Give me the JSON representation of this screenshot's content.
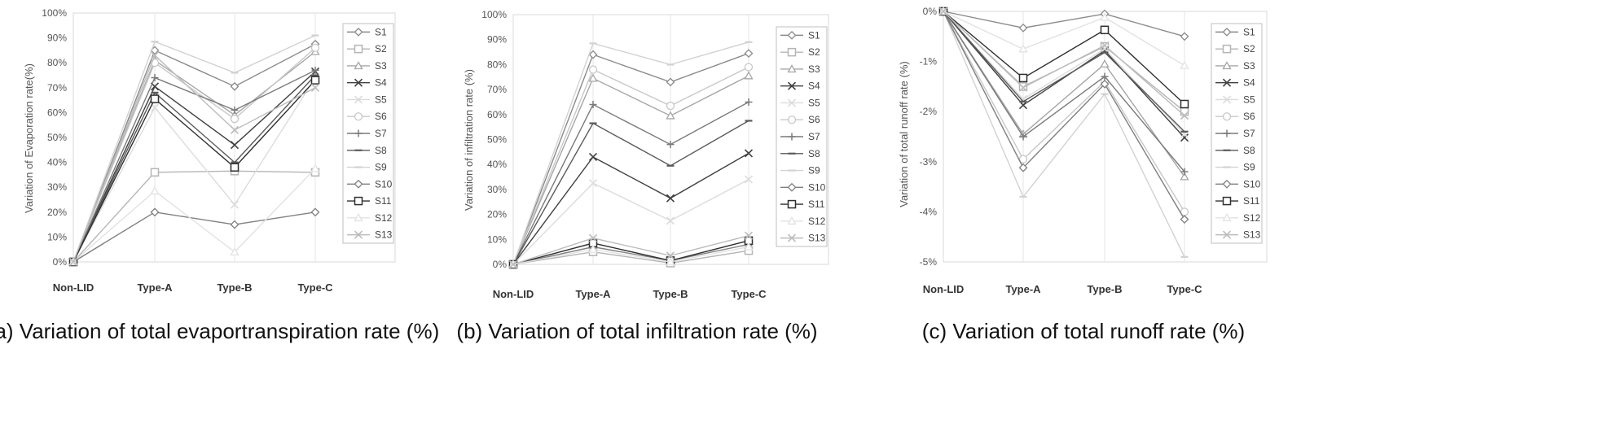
{
  "chart_data": [
    {
      "type": "line",
      "title": "",
      "caption": "(a) Variation of total evaportranspiration rate (%)",
      "xlabel": "",
      "ylabel": "Variation of Evaporation rate(%)",
      "categories": [
        "Non-LID",
        "Type-A",
        "Type-B",
        "Type-C"
      ],
      "ylim": [
        0,
        100
      ],
      "yticks": [
        0,
        10,
        20,
        30,
        40,
        50,
        60,
        70,
        80,
        90,
        100
      ],
      "ytick_labels": [
        "0%",
        "10%",
        "20%",
        "30%",
        "40%",
        "50%",
        "60%",
        "70%",
        "80%",
        "90%",
        "100%"
      ],
      "grid": "vertical",
      "legend_position": "right",
      "series": [
        {
          "name": "S1",
          "values": [
            0,
            85,
            70.5,
            87.5
          ],
          "color": "#8a8a8a",
          "marker": "diamond"
        },
        {
          "name": "S2",
          "values": [
            0,
            36,
            36.5,
            36
          ],
          "color": "#b5b5b5",
          "marker": "square"
        },
        {
          "name": "S3",
          "values": [
            0,
            81,
            59,
            84.5
          ],
          "color": "#a6a6a6",
          "marker": "triangle"
        },
        {
          "name": "S4",
          "values": [
            0,
            70.5,
            47,
            76.5
          ],
          "color": "#404040",
          "marker": "x"
        },
        {
          "name": "S5",
          "values": [
            0,
            62,
            23,
            74
          ],
          "color": "#dcdcdc",
          "marker": "x"
        },
        {
          "name": "S6",
          "values": [
            0,
            80,
            57.5,
            86
          ],
          "color": "#c8c8c8",
          "marker": "circle"
        },
        {
          "name": "S7",
          "values": [
            0,
            74,
            61,
            77
          ],
          "color": "#7a7a7a",
          "marker": "plus"
        },
        {
          "name": "S8",
          "values": [
            0,
            68,
            40,
            75
          ],
          "color": "#5a5a5a",
          "marker": "dash"
        },
        {
          "name": "S9",
          "values": [
            0,
            88.5,
            76,
            91
          ],
          "color": "#d2d2d2",
          "marker": "dash"
        },
        {
          "name": "S10",
          "values": [
            0,
            20,
            15,
            20
          ],
          "color": "#7f7f7f",
          "marker": "diamond"
        },
        {
          "name": "S11",
          "values": [
            0,
            65.5,
            38,
            73
          ],
          "color": "#2f2f2f",
          "marker": "square"
        },
        {
          "name": "S12",
          "values": [
            0,
            28.5,
            4,
            37.5
          ],
          "color": "#e2e2e2",
          "marker": "triangle"
        },
        {
          "name": "S13",
          "values": [
            0,
            83,
            53,
            70
          ],
          "color": "#bcbcbc",
          "marker": "x"
        }
      ]
    },
    {
      "type": "line",
      "title": "",
      "caption": "(b) Variation of total infiltration rate (%)",
      "xlabel": "",
      "ylabel": "Variation of infiltration rate (%)",
      "categories": [
        "Non-LID",
        "Type-A",
        "Type-B",
        "Type-C"
      ],
      "ylim": [
        0,
        100
      ],
      "yticks": [
        0,
        10,
        20,
        30,
        40,
        50,
        60,
        70,
        80,
        90,
        100
      ],
      "ytick_labels": [
        "0%",
        "10%",
        "20%",
        "30%",
        "40%",
        "50%",
        "60%",
        "70%",
        "80%",
        "90%",
        "100%"
      ],
      "grid": "vertical",
      "legend_position": "right",
      "series": [
        {
          "name": "S1",
          "values": [
            0,
            84,
            73,
            84.5
          ],
          "color": "#8a8a8a",
          "marker": "diamond"
        },
        {
          "name": "S2",
          "values": [
            0,
            5,
            0.5,
            5.5
          ],
          "color": "#b5b5b5",
          "marker": "square"
        },
        {
          "name": "S3",
          "values": [
            0,
            74.5,
            59.5,
            75.5
          ],
          "color": "#a6a6a6",
          "marker": "triangle"
        },
        {
          "name": "S4",
          "values": [
            0,
            43,
            26.5,
            44.5
          ],
          "color": "#404040",
          "marker": "x"
        },
        {
          "name": "S5",
          "values": [
            0,
            32.5,
            17.5,
            34
          ],
          "color": "#dcdcdc",
          "marker": "x"
        },
        {
          "name": "S6",
          "values": [
            0,
            78,
            63.5,
            79
          ],
          "color": "#c8c8c8",
          "marker": "circle"
        },
        {
          "name": "S7",
          "values": [
            0,
            64,
            48,
            65
          ],
          "color": "#7a7a7a",
          "marker": "plus"
        },
        {
          "name": "S8",
          "values": [
            0,
            56.5,
            39.5,
            57.5
          ],
          "color": "#5a5a5a",
          "marker": "dash"
        },
        {
          "name": "S9",
          "values": [
            0,
            88.5,
            80,
            89
          ],
          "color": "#d2d2d2",
          "marker": "dash"
        },
        {
          "name": "S10",
          "values": [
            0,
            7,
            1.5,
            8
          ],
          "color": "#7f7f7f",
          "marker": "diamond"
        },
        {
          "name": "S11",
          "values": [
            0,
            8.5,
            1.5,
            9.5
          ],
          "color": "#2f2f2f",
          "marker": "square"
        },
        {
          "name": "S12",
          "values": [
            0,
            6,
            1,
            7
          ],
          "color": "#e2e2e2",
          "marker": "triangle"
        },
        {
          "name": "S13",
          "values": [
            0,
            10.5,
            3.5,
            11.5
          ],
          "color": "#bcbcbc",
          "marker": "x"
        }
      ]
    },
    {
      "type": "line",
      "title": "",
      "caption": "(c) Variation of total runoff rate (%)",
      "xlabel": "",
      "ylabel": "Variation of total runoff rate (%)",
      "categories": [
        "Non-LID",
        "Type-A",
        "Type-B",
        "Type-C"
      ],
      "ylim": [
        -5,
        0
      ],
      "yticks": [
        0,
        -1,
        -2,
        -3,
        -4,
        -5
      ],
      "ytick_labels": [
        "0%",
        "-1%",
        "-2%",
        "-3%",
        "-4%",
        "-5%"
      ],
      "grid": "vertical",
      "legend_position": "right",
      "series": [
        {
          "name": "S1",
          "values": [
            0,
            -0.33,
            -0.05,
            -0.5
          ],
          "color": "#8a8a8a",
          "marker": "diamond"
        },
        {
          "name": "S2",
          "values": [
            0,
            -1.5,
            -0.7,
            -2.0
          ],
          "color": "#b5b5b5",
          "marker": "square"
        },
        {
          "name": "S3",
          "values": [
            0,
            -2.45,
            -1.05,
            -3.3
          ],
          "color": "#a6a6a6",
          "marker": "triangle"
        },
        {
          "name": "S4",
          "values": [
            0,
            -1.87,
            -0.78,
            -2.52
          ],
          "color": "#404040",
          "marker": "x"
        },
        {
          "name": "S5",
          "values": [
            0,
            -1.75,
            -0.75,
            -2.45
          ],
          "color": "#dcdcdc",
          "marker": "x"
        },
        {
          "name": "S6",
          "values": [
            0,
            -2.95,
            -1.4,
            -4.0
          ],
          "color": "#c8c8c8",
          "marker": "circle"
        },
        {
          "name": "S7",
          "values": [
            0,
            -2.5,
            -1.3,
            -3.2
          ],
          "color": "#7a7a7a",
          "marker": "plus"
        },
        {
          "name": "S8",
          "values": [
            0,
            -1.8,
            -0.82,
            -2.4
          ],
          "color": "#5a5a5a",
          "marker": "dash"
        },
        {
          "name": "S9",
          "values": [
            0,
            -3.7,
            -1.65,
            -4.9
          ],
          "color": "#d2d2d2",
          "marker": "dash"
        },
        {
          "name": "S10",
          "values": [
            0,
            -3.12,
            -1.45,
            -4.15
          ],
          "color": "#7f7f7f",
          "marker": "diamond"
        },
        {
          "name": "S11",
          "values": [
            0,
            -1.33,
            -0.37,
            -1.85
          ],
          "color": "#2f2f2f",
          "marker": "square"
        },
        {
          "name": "S12",
          "values": [
            0,
            -0.75,
            -0.12,
            -1.08
          ],
          "color": "#e2e2e2",
          "marker": "triangle"
        },
        {
          "name": "S13",
          "values": [
            0,
            -1.52,
            -0.68,
            -2.08
          ],
          "color": "#bcbcbc",
          "marker": "x"
        }
      ]
    }
  ]
}
